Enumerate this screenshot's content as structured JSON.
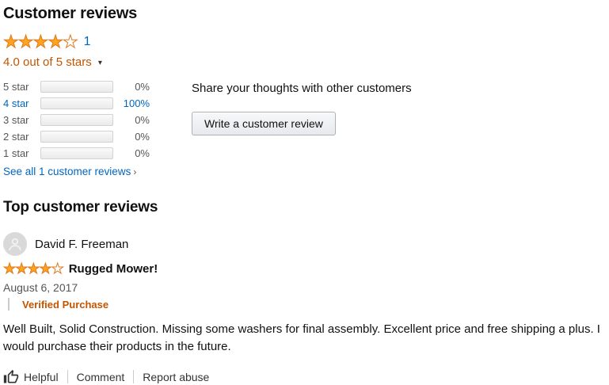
{
  "header": {
    "title": "Customer reviews",
    "review_count": "1",
    "rating_text": "4.0 out of 5 stars",
    "rating_value": 4,
    "stars_total": 5
  },
  "icons": {
    "dropdown_caret": "▾",
    "see_all_arrow": "›",
    "star_glyph": "★",
    "helpful_icon": "thumb-up-outline",
    "avatar_icon": "person-silhouette"
  },
  "histogram": {
    "rows": [
      {
        "label": "5 star",
        "percent_label": "0%",
        "percent_value": 0
      },
      {
        "label": "4 star",
        "percent_label": "100%",
        "percent_value": 100
      },
      {
        "label": "3 star",
        "percent_label": "0%",
        "percent_value": 0
      },
      {
        "label": "2 star",
        "percent_label": "0%",
        "percent_value": 0
      },
      {
        "label": "1 star",
        "percent_label": "0%",
        "percent_value": 0
      }
    ]
  },
  "share": {
    "prompt": "Share your thoughts with other customers",
    "button_label": "Write a customer review"
  },
  "see_all": {
    "label": "See all 1 customer reviews"
  },
  "top_reviews": {
    "title": "Top customer reviews"
  },
  "review": {
    "author": "David F. Freeman",
    "rating_value": 4,
    "title": "Rugged Mower!",
    "date": "August 6, 2017",
    "verified_badge": "Verified Purchase",
    "body": "Well Built, Solid Construction. Missing some washers for final assembly. Excellent price and free shipping a plus. I would purchase their products in the future.",
    "actions": {
      "helpful": "Helpful",
      "comment": "Comment",
      "report": "Report abuse"
    }
  },
  "colors": {
    "link_blue": "#0066c0",
    "accent_orange": "#c45500",
    "star_gold": "#ffa41c",
    "star_border": "#de7921",
    "bar_fill_top": "#ffce00",
    "bar_fill_bottom": "#ffa700"
  }
}
